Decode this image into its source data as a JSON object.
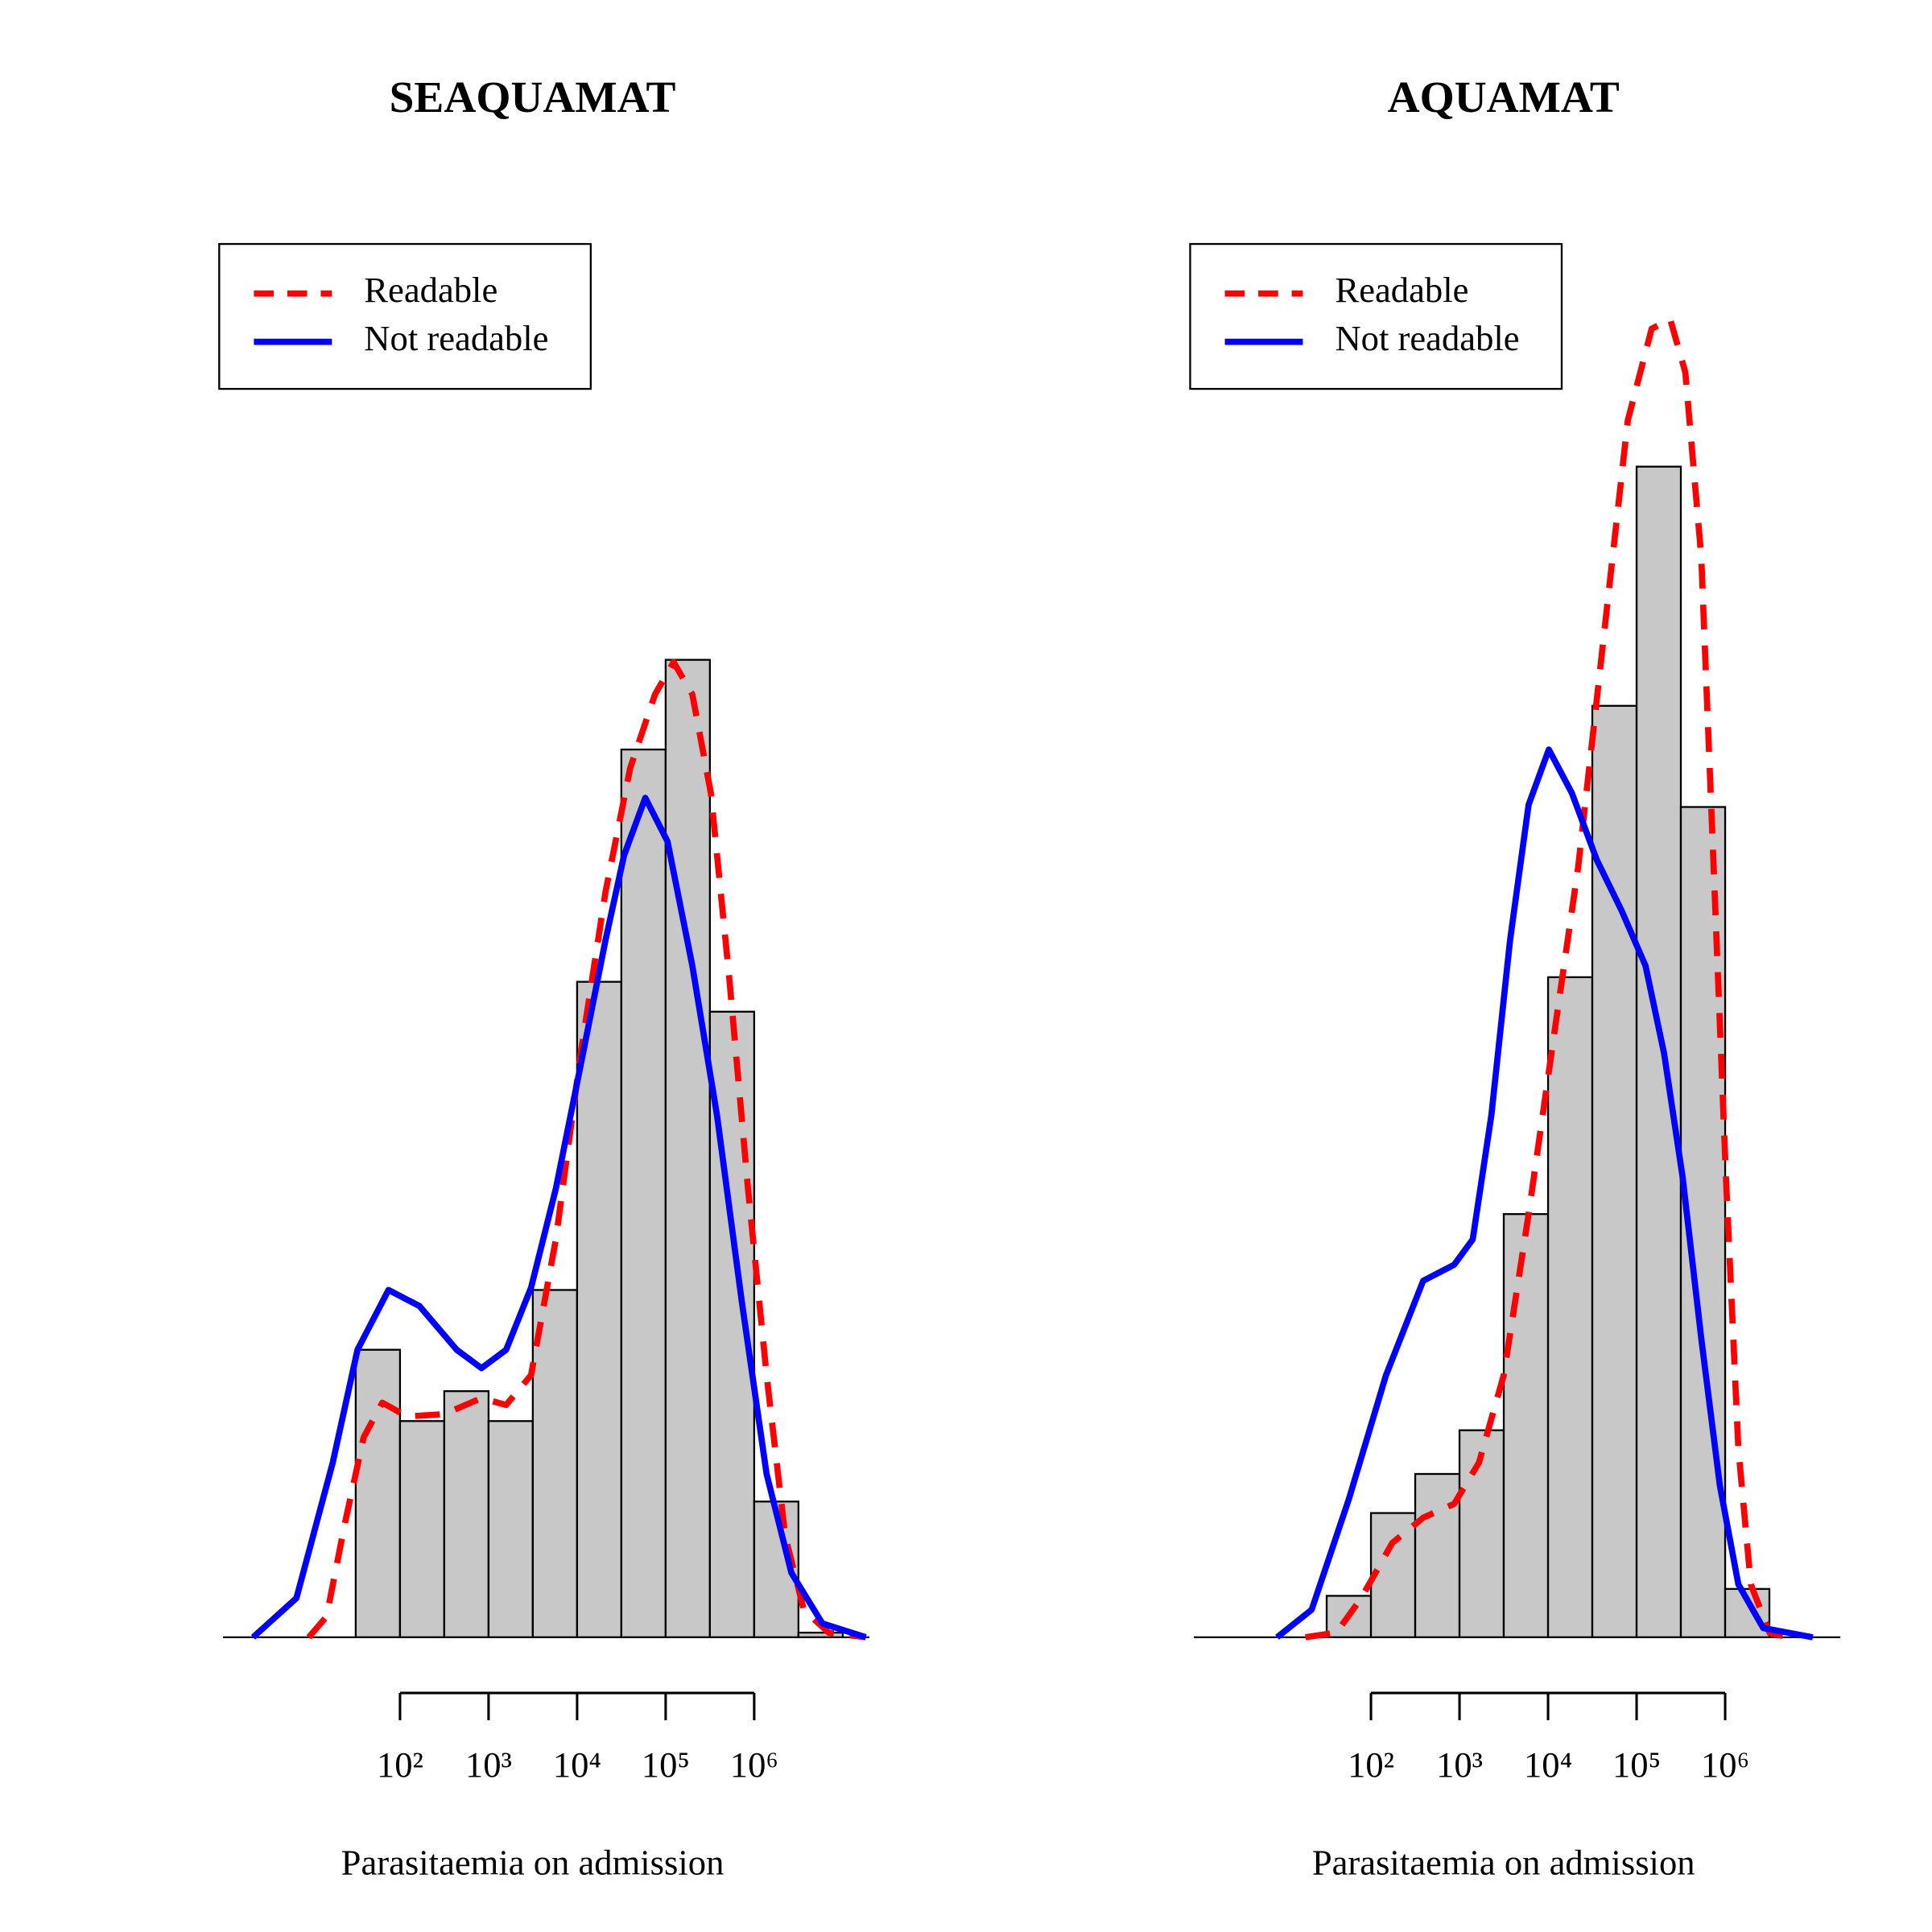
{
  "chart_data": [
    {
      "type": "histogram",
      "title": "SEAQUAMAT",
      "xlabel": "Parasitaemia on admission",
      "xscale": "log",
      "xlim": [
        1,
        20000000
      ],
      "ylim": [
        0,
        0.6
      ],
      "xticks": [
        {
          "value": 100,
          "label": "10²"
        },
        {
          "value": 1000,
          "label": "10³"
        },
        {
          "value": 10000,
          "label": "10⁴"
        },
        {
          "value": 100000,
          "label": "10⁵"
        },
        {
          "value": 1000000,
          "label": "10⁶"
        }
      ],
      "bins": [
        31.6,
        100,
        316,
        1000,
        3160,
        10000,
        31600,
        100000,
        316000,
        1000000,
        3160000,
        10000000
      ],
      "values": [
        0.125,
        0.094,
        0.107,
        0.094,
        0.151,
        0.285,
        0.386,
        0.425,
        0.272,
        0.059,
        0.002
      ],
      "color": "#c8c8c8",
      "legend": "topleft",
      "series": [
        {
          "name": "Readable",
          "color": "#ff0000",
          "dashed": true,
          "x": [
            9.33,
            14.8,
            24.0,
            38.9,
            63.1,
            120,
            316,
            832,
            1580,
            3020,
            5750,
            11000,
            20900,
            39800,
            75900,
            123000,
            200000,
            324000,
            525000,
            851000,
            1380000,
            2240000,
            3630000,
            6920000,
            18200000
          ],
          "values": [
            0,
            0.009,
            0.05,
            0.087,
            0.102,
            0.096,
            0.097,
            0.104,
            0.101,
            0.114,
            0.173,
            0.254,
            0.324,
            0.378,
            0.41,
            0.424,
            0.41,
            0.367,
            0.286,
            0.195,
            0.114,
            0.044,
            0.012,
            0.002,
            0
          ]
        },
        {
          "name": "Not readable",
          "color": "#0000ff",
          "dashed": false,
          "x": [
            2.19,
            6.76,
            17.4,
            33.1,
            74.1,
            166,
            437,
            832,
            1580,
            3020,
            5750,
            11000,
            20900,
            33900,
            58900,
            105000,
            200000,
            380000,
            724000,
            1380000,
            2630000,
            5890000,
            18200000
          ],
          "values": [
            0,
            0.017,
            0.076,
            0.125,
            0.151,
            0.144,
            0.125,
            0.117,
            0.125,
            0.152,
            0.195,
            0.249,
            0.303,
            0.34,
            0.365,
            0.346,
            0.292,
            0.227,
            0.146,
            0.071,
            0.028,
            0.006,
            0
          ]
        }
      ]
    },
    {
      "type": "histogram",
      "title": "AQUAMAT",
      "xlabel": "Parasitaemia on admission",
      "xscale": "log",
      "xlim": [
        1,
        20000000
      ],
      "ylim": [
        0,
        0.6
      ],
      "xticks": [
        {
          "value": 100,
          "label": "10²"
        },
        {
          "value": 1000,
          "label": "10³"
        },
        {
          "value": 10000,
          "label": "10⁴"
        },
        {
          "value": 100000,
          "label": "10⁵"
        },
        {
          "value": 1000000,
          "label": "10⁶"
        }
      ],
      "bins": [
        31.6,
        100,
        316,
        1000,
        3160,
        10000,
        31600,
        100000,
        316000,
        1000000,
        3160000
      ],
      "values": [
        0.018,
        0.054,
        0.071,
        0.09,
        0.184,
        0.287,
        0.405,
        0.509,
        0.361,
        0.021
      ],
      "color": "#c8c8c8",
      "legend": "topleft",
      "series": [
        {
          "name": "Readable",
          "color": "#ff0000",
          "dashed": true,
          "x": [
            18.2,
            40.7,
            77.6,
            174,
            389,
            871,
            1660,
            3160,
            6030,
            11500,
            21900,
            41700,
            79400,
            148000,
            240000,
            355000,
            537000,
            741000,
            1020000,
            1410000,
            1950000,
            3160000,
            5130000
          ],
          "values": [
            0,
            0.002,
            0.017,
            0.041,
            0.052,
            0.058,
            0.076,
            0.114,
            0.184,
            0.26,
            0.335,
            0.432,
            0.529,
            0.569,
            0.573,
            0.55,
            0.47,
            0.335,
            0.2,
            0.082,
            0.023,
            0.002,
            0
          ]
        },
        {
          "name": "Not readable",
          "color": "#0000ff",
          "dashed": false,
          "x": [
            8.71,
            21.4,
            56.2,
            148,
            389,
            871,
            1410,
            2290,
            3720,
            6030,
            10200,
            18600,
            35500,
            67600,
            126000,
            204000,
            331000,
            537000,
            871000,
            1410000,
            2690000,
            9770000
          ],
          "values": [
            0,
            0.012,
            0.06,
            0.114,
            0.155,
            0.162,
            0.173,
            0.227,
            0.303,
            0.362,
            0.386,
            0.367,
            0.338,
            0.316,
            0.292,
            0.254,
            0.2,
            0.13,
            0.066,
            0.023,
            0.004,
            0
          ]
        }
      ]
    }
  ]
}
